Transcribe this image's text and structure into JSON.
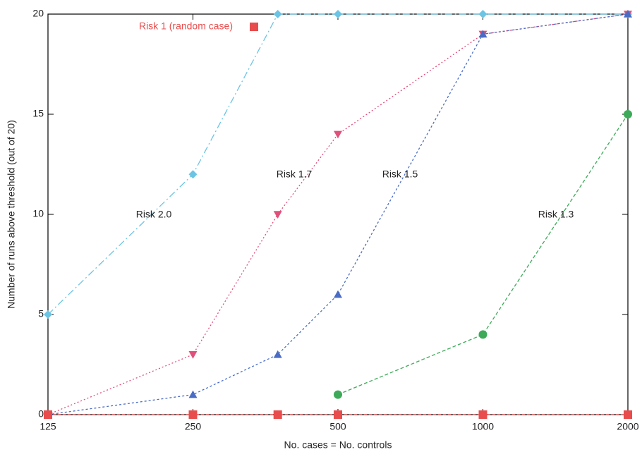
{
  "chart_data": {
    "type": "line",
    "x_label": "No. cases = No. controls",
    "y_label": "Number of runs above threshold (out of 20)",
    "x": [
      125,
      250,
      375,
      500,
      1000,
      2000
    ],
    "xscale": "log",
    "xlim": [
      125,
      2000
    ],
    "xticks": [
      125,
      250,
      500,
      1000,
      2000
    ],
    "ylim": [
      0,
      20
    ],
    "yticks": [
      0,
      5,
      10,
      15,
      20
    ],
    "legend": "top left",
    "series": [
      {
        "name": "Risk 2.0",
        "color": "#6cc4e4",
        "marker": "diamond",
        "label": "inline",
        "values": [
          5,
          12,
          20,
          20,
          20,
          20
        ]
      },
      {
        "name": "Risk 1.7",
        "color": "#e0507a",
        "marker": "triangle-down",
        "label": "inline",
        "values": [
          0,
          3,
          10,
          14,
          19,
          20
        ]
      },
      {
        "name": "Risk 1.5",
        "color": "#4a6cc4",
        "marker": "triangle-up",
        "label": "inline",
        "values": [
          0,
          1,
          3,
          6,
          19,
          20
        ]
      },
      {
        "name": "Risk 1.3",
        "color": "#3caa58",
        "marker": "circle",
        "label": "inline",
        "values": [
          null,
          null,
          null,
          1,
          4,
          15
        ]
      },
      {
        "name": "Risk 1 (random case)",
        "color": "#e84c4c",
        "marker": "square",
        "label": "legend",
        "values": [
          0,
          0,
          0,
          0,
          0,
          0
        ]
      }
    ]
  }
}
